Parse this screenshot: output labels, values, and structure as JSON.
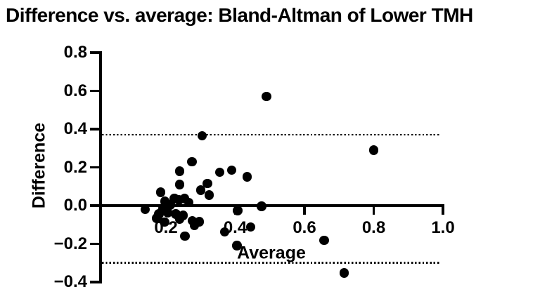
{
  "title": "Difference vs. average: Bland-Altman of Lower TMH",
  "chart_data": {
    "type": "scatter",
    "title": "Difference vs. average: Bland-Altman of Lower TMH",
    "xlabel": "Average",
    "ylabel": "Difference",
    "xlim": [
      0.01,
      1.0
    ],
    "ylim": [
      -0.4,
      0.8
    ],
    "x_ticks": [
      0.2,
      0.4,
      0.6,
      0.8,
      1.0
    ],
    "x_tick_labels": [
      "0.2",
      "0.4",
      "0.6",
      "0.8",
      "1.0"
    ],
    "y_ticks": [
      0.8,
      0.6,
      0.4,
      0.2,
      0.0,
      -0.2,
      -0.4
    ],
    "y_tick_labels": [
      "0.8",
      "0.6",
      "0.4",
      "0.2",
      "0.0",
      "−0.2",
      "−0.4"
    ],
    "grid": false,
    "legend": false,
    "zero_line_y": 0.0,
    "upper_loa": 0.37,
    "lower_loa": -0.3,
    "marker_color": "#000000",
    "background_color": "#ffffff",
    "points": [
      [
        0.49,
        0.57
      ],
      [
        0.8,
        0.29
      ],
      [
        0.305,
        0.365
      ],
      [
        0.275,
        0.23
      ],
      [
        0.24,
        0.18
      ],
      [
        0.24,
        0.11
      ],
      [
        0.355,
        0.175
      ],
      [
        0.39,
        0.185
      ],
      [
        0.435,
        0.15
      ],
      [
        0.32,
        0.115
      ],
      [
        0.3,
        0.08
      ],
      [
        0.325,
        0.055
      ],
      [
        0.14,
        -0.02
      ],
      [
        0.185,
        0.07
      ],
      [
        0.197,
        0.022
      ],
      [
        0.212,
        0.004
      ],
      [
        0.224,
        0.037
      ],
      [
        0.238,
        0.029
      ],
      [
        0.254,
        0.037
      ],
      [
        0.266,
        0.016
      ],
      [
        0.192,
        -0.015
      ],
      [
        0.205,
        -0.037
      ],
      [
        0.18,
        -0.044
      ],
      [
        0.228,
        -0.044
      ],
      [
        0.25,
        -0.051
      ],
      [
        0.174,
        -0.066
      ],
      [
        0.24,
        -0.072
      ],
      [
        0.196,
        -0.086
      ],
      [
        0.276,
        -0.079
      ],
      [
        0.282,
        -0.103
      ],
      [
        0.296,
        -0.084
      ],
      [
        0.255,
        -0.16
      ],
      [
        0.37,
        -0.137
      ],
      [
        0.407,
        -0.025
      ],
      [
        0.445,
        -0.112
      ],
      [
        0.476,
        -0.004
      ],
      [
        0.405,
        -0.21
      ],
      [
        0.657,
        -0.182
      ],
      [
        0.715,
        -0.352
      ]
    ]
  }
}
